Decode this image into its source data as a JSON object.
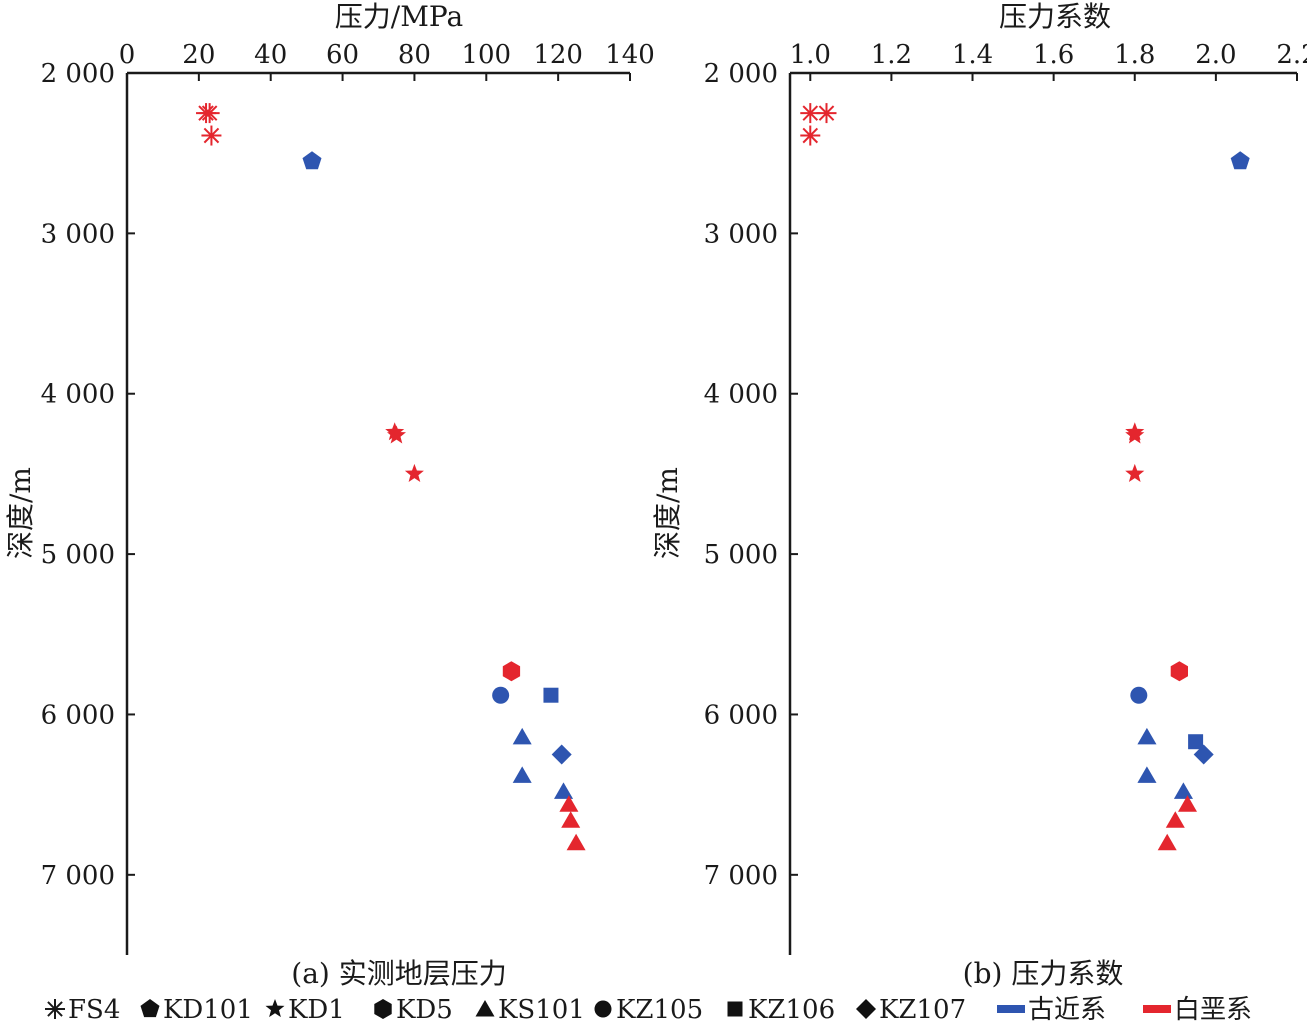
{
  "colors": {
    "paleogene": "#2e55b0",
    "cretaceous": "#e4262e",
    "axis": "#1a1a1a"
  },
  "chart_data": [
    {
      "type": "scatter",
      "id": "a",
      "xlabel": "压力/MPa",
      "ylabel": "深度/m",
      "caption": "(a) 实测地层压力",
      "xlim": [
        0,
        140
      ],
      "ylim": [
        2000,
        7500
      ],
      "xticks": [
        "0",
        "20",
        "40",
        "60",
        "80",
        "100",
        "120",
        "140"
      ],
      "xtick_values": [
        0,
        20,
        40,
        60,
        80,
        100,
        120,
        140
      ],
      "yticks": [
        "2 000",
        "3 000",
        "4 000",
        "5 000",
        "6 000",
        "7 000"
      ],
      "ytick_values": [
        2000,
        3000,
        4000,
        5000,
        6000,
        7000
      ],
      "x_axis_position": "top",
      "y_inverted": true,
      "points": [
        {
          "well": "FS4",
          "strata": "白垩系",
          "x": 22.0,
          "y": 2250
        },
        {
          "well": "FS4",
          "strata": "白垩系",
          "x": 23.0,
          "y": 2250
        },
        {
          "well": "FS4",
          "strata": "白垩系",
          "x": 23.5,
          "y": 2390
        },
        {
          "well": "KD101",
          "strata": "古近系",
          "x": 51.5,
          "y": 2550
        },
        {
          "well": "KD1",
          "strata": "白垩系",
          "x": 74.5,
          "y": 4240
        },
        {
          "well": "KD1",
          "strata": "白垩系",
          "x": 75.0,
          "y": 4260
        },
        {
          "well": "KD1",
          "strata": "白垩系",
          "x": 80.0,
          "y": 4500
        },
        {
          "well": "KD5",
          "strata": "白垩系",
          "x": 107.0,
          "y": 5730
        },
        {
          "well": "KZ105",
          "strata": "古近系",
          "x": 104.0,
          "y": 5880
        },
        {
          "well": "KZ106",
          "strata": "古近系",
          "x": 118.0,
          "y": 5880
        },
        {
          "well": "KS101",
          "strata": "古近系",
          "x": 110.0,
          "y": 6140
        },
        {
          "well": "KZ107",
          "strata": "古近系",
          "x": 121.0,
          "y": 6250
        },
        {
          "well": "KS101",
          "strata": "古近系",
          "x": 110.0,
          "y": 6380
        },
        {
          "well": "KS101",
          "strata": "古近系",
          "x": 121.5,
          "y": 6480
        },
        {
          "well": "KS101",
          "strata": "白垩系",
          "x": 123.0,
          "y": 6560
        },
        {
          "well": "KS101",
          "strata": "白垩系",
          "x": 123.5,
          "y": 6660
        },
        {
          "well": "KS101",
          "strata": "白垩系",
          "x": 125.0,
          "y": 6800
        }
      ]
    },
    {
      "type": "scatter",
      "id": "b",
      "xlabel": "压力系数",
      "ylabel": "深度/m",
      "caption": "(b) 压力系数",
      "xlim": [
        0.95,
        2.2
      ],
      "ylim": [
        2000,
        7500
      ],
      "xticks": [
        "1.0",
        "1.2",
        "1.4",
        "1.6",
        "1.8",
        "2.0",
        "2.2"
      ],
      "xtick_values": [
        1.0,
        1.2,
        1.4,
        1.6,
        1.8,
        2.0,
        2.2
      ],
      "yticks": [
        "2 000",
        "3 000",
        "4 000",
        "5 000",
        "6 000",
        "7 000"
      ],
      "ytick_values": [
        2000,
        3000,
        4000,
        5000,
        6000,
        7000
      ],
      "x_axis_position": "top",
      "y_inverted": true,
      "points": [
        {
          "well": "FS4",
          "strata": "白垩系",
          "x": 1.0,
          "y": 2250
        },
        {
          "well": "FS4",
          "strata": "白垩系",
          "x": 1.04,
          "y": 2250
        },
        {
          "well": "FS4",
          "strata": "白垩系",
          "x": 1.0,
          "y": 2390
        },
        {
          "well": "KD101",
          "strata": "古近系",
          "x": 2.06,
          "y": 2550
        },
        {
          "well": "KD1",
          "strata": "白垩系",
          "x": 1.8,
          "y": 4240
        },
        {
          "well": "KD1",
          "strata": "白垩系",
          "x": 1.8,
          "y": 4260
        },
        {
          "well": "KD1",
          "strata": "白垩系",
          "x": 1.8,
          "y": 4500
        },
        {
          "well": "KD5",
          "strata": "白垩系",
          "x": 1.91,
          "y": 5730
        },
        {
          "well": "KZ105",
          "strata": "古近系",
          "x": 1.81,
          "y": 5880
        },
        {
          "well": "KS101",
          "strata": "古近系",
          "x": 1.83,
          "y": 6140
        },
        {
          "well": "KZ106",
          "strata": "古近系",
          "x": 1.95,
          "y": 6170
        },
        {
          "well": "KZ107",
          "strata": "古近系",
          "x": 1.97,
          "y": 6250
        },
        {
          "well": "KS101",
          "strata": "古近系",
          "x": 1.83,
          "y": 6380
        },
        {
          "well": "KS101",
          "strata": "古近系",
          "x": 1.92,
          "y": 6480
        },
        {
          "well": "KS101",
          "strata": "白垩系",
          "x": 1.93,
          "y": 6560
        },
        {
          "well": "KS101",
          "strata": "白垩系",
          "x": 1.9,
          "y": 6660
        },
        {
          "well": "KS101",
          "strata": "白垩系",
          "x": 1.88,
          "y": 6800
        }
      ]
    }
  ],
  "legend": {
    "placement": "bottom",
    "items": [
      {
        "label": "FS4",
        "marker": "asterisk-icon"
      },
      {
        "label": "KD101",
        "marker": "pentagon-icon"
      },
      {
        "label": "KD1",
        "marker": "star-icon"
      },
      {
        "label": "KD5",
        "marker": "hexagon-icon"
      },
      {
        "label": "KS101",
        "marker": "triangle-icon"
      },
      {
        "label": "KZ105",
        "marker": "circle-icon"
      },
      {
        "label": "KZ106",
        "marker": "square-icon"
      },
      {
        "label": "KZ107",
        "marker": "diamond-icon"
      },
      {
        "label": "古近系",
        "marker": "blue-bar-icon"
      },
      {
        "label": "白垩系",
        "marker": "red-bar-icon"
      }
    ]
  }
}
